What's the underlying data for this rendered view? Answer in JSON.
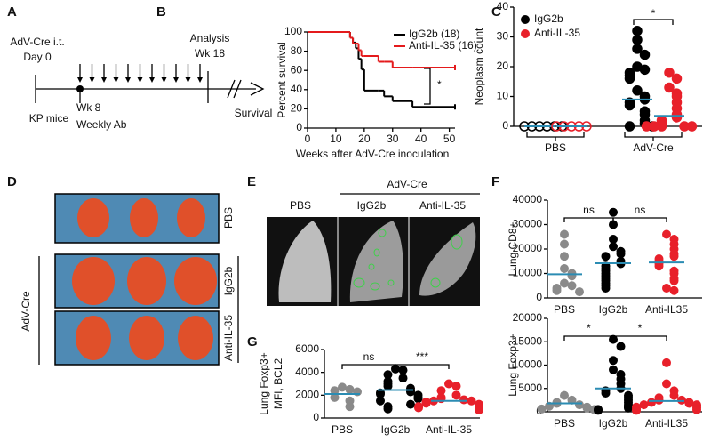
{
  "panel_a": {
    "letter": "A",
    "start_label": [
      "AdV-Cre i.t.",
      "Day 0"
    ],
    "cohort": "KP mice",
    "treatment_start": [
      "Wk 8",
      "Weekly Ab"
    ],
    "analysis": [
      "Analysis",
      "Wk 18"
    ],
    "endpoint": "Survival"
  },
  "panel_d": {
    "letter": "D",
    "rows": [
      "PBS",
      "IgG2b",
      "Anti-IL-35"
    ],
    "group": "AdV-Cre"
  },
  "panel_e": {
    "letter": "E",
    "group": "AdV-Cre",
    "columns": [
      "PBS",
      "IgG2b",
      "Anti-IL-35"
    ]
  },
  "chart_data": [
    {
      "panel": "B",
      "type": "line",
      "step": true,
      "xlabel": "Weeks after AdV-Cre inoculation",
      "ylabel": "Percent survival",
      "x": [
        0,
        14,
        15,
        16,
        17,
        18,
        19,
        20,
        25,
        27,
        30,
        37,
        52
      ],
      "xlim": [
        0,
        52
      ],
      "xticks": [
        0,
        10,
        20,
        30,
        40,
        50
      ],
      "ylim": [
        0,
        100
      ],
      "yticks": [
        0,
        20,
        40,
        60,
        80,
        100
      ],
      "series": [
        {
          "name": "IgG2b (18)",
          "color": "#000000",
          "values": [
            100,
            100,
            94,
            89,
            83,
            72,
            61,
            39,
            39,
            33,
            28,
            22,
            22
          ]
        },
        {
          "name": "Anti-IL-35 (16)",
          "color": "#e41a1c",
          "values": [
            100,
            100,
            94,
            88,
            88,
            81,
            75,
            75,
            69,
            69,
            63,
            63,
            63
          ]
        }
      ],
      "annotations": [
        {
          "text": "*"
        }
      ]
    },
    {
      "panel": "C",
      "type": "groupedstrip",
      "ylabel": "Neoplasm count",
      "categories": [
        "PBS",
        "AdV-Cre"
      ],
      "ylim": [
        0,
        40
      ],
      "yticks": [
        0,
        10,
        20,
        30,
        40
      ],
      "mean_color": "#2b8cb3",
      "series": [
        {
          "name": "IgG2b",
          "color": "#000000",
          "open": [
            true,
            false
          ],
          "values": [
            [
              0,
              0,
              0,
              0,
              0,
              0
            ],
            [
              32,
              29,
              26,
              24,
              20,
              19,
              18,
              17,
              16,
              12,
              10,
              9,
              8,
              7,
              5,
              4,
              2,
              1,
              0,
              0
            ]
          ],
          "means": [
            0,
            9
          ]
        },
        {
          "name": "Anti-IL-35",
          "color": "#e8202a",
          "open": [
            true,
            false
          ],
          "values": [
            [
              0,
              0,
              0,
              0,
              0
            ],
            [
              18,
              16,
              13,
              11,
              10,
              8,
              6,
              4,
              3,
              2,
              1,
              0,
              0,
              0,
              0,
              0
            ]
          ],
          "means": [
            0,
            3.5
          ]
        }
      ],
      "annotations": [
        {
          "text": "*"
        }
      ]
    },
    {
      "panel": "F",
      "type": "strip",
      "ylabel": "Lung CD8+",
      "categories": [
        "PBS",
        "IgG2b",
        "Anti-IL35"
      ],
      "ylim": [
        0,
        40000
      ],
      "yticks": [
        0,
        10000,
        20000,
        30000,
        40000
      ],
      "mean_color": "#2b8cb3",
      "series": [
        {
          "color": "#8a8a8a",
          "values": [
            26000,
            22000,
            17000,
            12000,
            10000,
            9000,
            6000,
            5000,
            4000,
            3000,
            2500
          ],
          "mean": 9700
        },
        {
          "color": "#000000",
          "values": [
            35000,
            30000,
            24000,
            21000,
            19000,
            18000,
            17000,
            15000,
            14000,
            13000,
            12000,
            11000,
            10000,
            9000,
            8000,
            7000,
            6000,
            5000,
            4000
          ],
          "mean": 14200
        },
        {
          "color": "#e8202a",
          "values": [
            26000,
            24000,
            22000,
            20000,
            18000,
            17000,
            16000,
            15000,
            14000,
            13000,
            11000,
            10000,
            8000,
            7000,
            4000,
            3000
          ],
          "mean": 14500
        }
      ],
      "annotations": [
        {
          "text": "ns",
          "between": [
            0,
            1
          ]
        },
        {
          "text": "ns",
          "between": [
            1,
            2
          ]
        }
      ]
    },
    {
      "type": "strip",
      "ylabel": "Lung Foxp3+",
      "categories": [
        "PBS",
        "IgG2b",
        "Anti-IL35"
      ],
      "ylim": [
        0,
        20000
      ],
      "yticks": [
        0,
        5000,
        10000,
        15000,
        20000
      ],
      "mean_color": "#2b8cb3",
      "series": [
        {
          "color": "#8a8a8a",
          "values": [
            3500,
            2500,
            2000,
            1800,
            1500,
            1200,
            1000,
            800,
            600,
            500,
            400
          ],
          "mean": 1800
        },
        {
          "color": "#000000",
          "values": [
            15500,
            14000,
            11000,
            9000,
            8000,
            7000,
            6000,
            5000,
            4500,
            4000,
            3500,
            3000,
            2500,
            2000,
            1500,
            1000,
            800,
            500,
            300
          ],
          "mean": 5000
        },
        {
          "color": "#e8202a",
          "values": [
            10500,
            6000,
            4500,
            3500,
            3000,
            2500,
            2500,
            2000,
            2000,
            1800,
            1500,
            1500,
            1200,
            1000,
            800,
            600,
            400,
            300
          ],
          "mean": 2300
        }
      ],
      "annotations": [
        {
          "text": "*",
          "between": [
            0,
            1
          ]
        },
        {
          "text": "*",
          "between": [
            1,
            2
          ]
        }
      ]
    },
    {
      "panel": "G",
      "type": "strip",
      "ylabel": [
        "Lung Foxp3+",
        "MFI, BCL2"
      ],
      "categories": [
        "PBS",
        "IgG2b",
        "Anti-IL-35"
      ],
      "ylim": [
        0,
        6000
      ],
      "yticks": [
        0,
        2000,
        4000,
        6000
      ],
      "mean_color": "#2b8cb3",
      "series": [
        {
          "color": "#8a8a8a",
          "values": [
            2700,
            2500,
            2400,
            2300,
            1800,
            1500,
            1000
          ],
          "mean": 2100
        },
        {
          "color": "#000000",
          "values": [
            4300,
            4200,
            3800,
            3500,
            3200,
            3000,
            2800,
            2600,
            2400,
            2300,
            2200,
            2100,
            2000,
            1800,
            1700,
            1500,
            1200,
            1000,
            800
          ],
          "mean": 2450
        },
        {
          "color": "#e8202a",
          "values": [
            3000,
            2800,
            2400,
            2000,
            1800,
            1700,
            1600,
            1500,
            1500,
            1400,
            1300,
            1200,
            1100,
            1000,
            1000,
            900,
            800,
            700
          ],
          "mean": 1500
        }
      ],
      "annotations": [
        {
          "text": "ns",
          "between": [
            0,
            1
          ]
        },
        {
          "text": "***",
          "between": [
            1,
            2
          ]
        }
      ]
    }
  ]
}
